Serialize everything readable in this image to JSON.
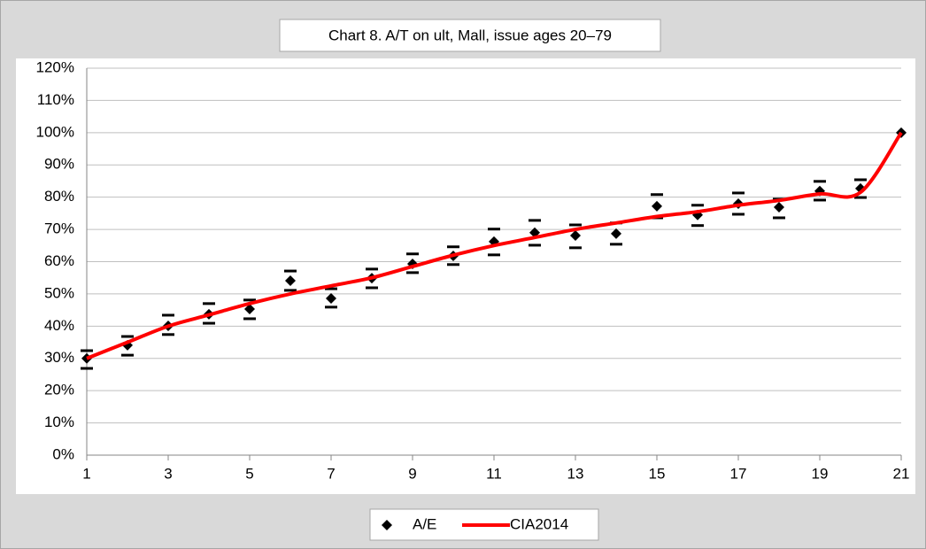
{
  "chart_data": {
    "type": "scatter",
    "title": "Chart 8. A/T on ult, Mall, issue ages 20–79",
    "x": [
      1,
      2,
      3,
      4,
      5,
      6,
      7,
      8,
      9,
      10,
      11,
      12,
      13,
      14,
      15,
      16,
      17,
      18,
      19,
      20,
      21
    ],
    "xlim": [
      1,
      21
    ],
    "xticks": [
      1,
      3,
      5,
      7,
      9,
      11,
      13,
      15,
      17,
      19,
      21
    ],
    "ylim": [
      0,
      120
    ],
    "yticks": [
      {
        "value": 0,
        "label": "0%"
      },
      {
        "value": 10,
        "label": "10%"
      },
      {
        "value": 20,
        "label": "20%"
      },
      {
        "value": 30,
        "label": "30%"
      },
      {
        "value": 40,
        "label": "40%"
      },
      {
        "value": 50,
        "label": "50%"
      },
      {
        "value": 60,
        "label": "60%"
      },
      {
        "value": 70,
        "label": "70%"
      },
      {
        "value": 80,
        "label": "80%"
      },
      {
        "value": 90,
        "label": "90%"
      },
      {
        "value": 100,
        "label": "100%"
      },
      {
        "value": 110,
        "label": "110%"
      },
      {
        "value": 120,
        "label": "120%"
      }
    ],
    "grid": true,
    "legend": "bottom",
    "series": [
      {
        "name": "A/E",
        "color": "#000000",
        "marker": "diamond",
        "values": [
          30,
          34.1,
          40.1,
          43.7,
          45.3,
          54.1,
          48.6,
          54.9,
          59.3,
          61.8,
          66.2,
          69.0,
          68.1,
          68.7,
          77.2,
          74.5,
          78.0,
          76.9,
          81.9,
          82.7,
          100
        ],
        "upper": [
          32.4,
          36.8,
          43.4,
          47.0,
          48.1,
          57.1,
          51.6,
          57.7,
          62.4,
          64.6,
          70.1,
          72.8,
          71.4,
          72.0,
          80.8,
          77.5,
          81.3,
          79.4,
          84.9,
          85.4,
          null
        ],
        "lower": [
          26.9,
          31.0,
          37.4,
          40.9,
          42.3,
          51.1,
          45.9,
          51.9,
          56.6,
          59.1,
          62.1,
          65.1,
          64.3,
          65.4,
          73.6,
          71.2,
          74.7,
          73.6,
          79.1,
          79.9,
          null
        ]
      },
      {
        "name": "CIA2014",
        "color": "#ff0000",
        "type": "line",
        "values": [
          30,
          35,
          40,
          43.5,
          47,
          50,
          52.5,
          55,
          58.5,
          62,
          65,
          67.5,
          70,
          72,
          74,
          75.5,
          77.5,
          79,
          81,
          81.5,
          100
        ]
      }
    ]
  }
}
